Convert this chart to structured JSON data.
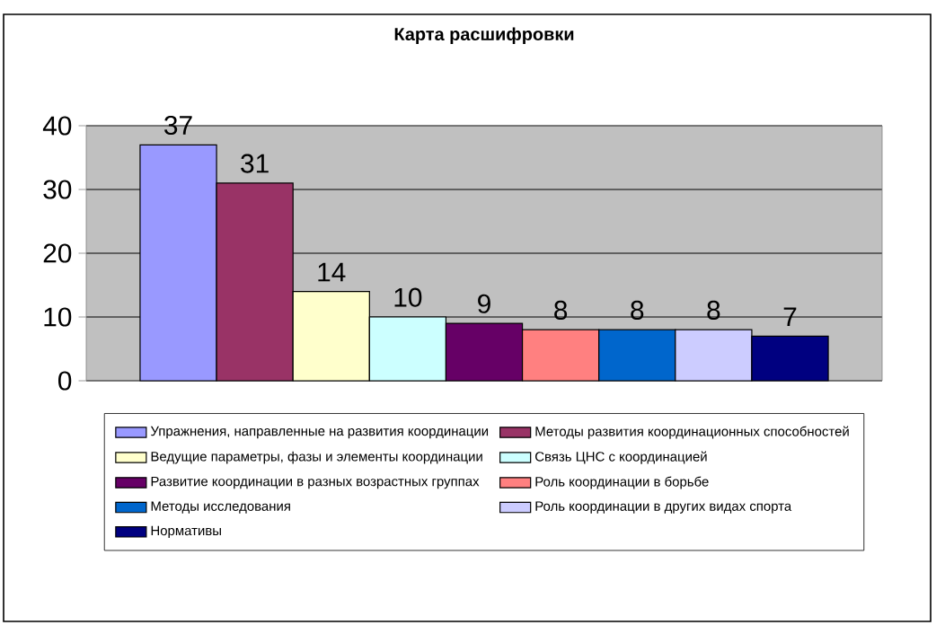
{
  "chart_data": {
    "type": "bar",
    "title": "Карта расшифровки",
    "categories": [
      null
    ],
    "series": [
      {
        "name": "Упражнения, направленные на развития координации",
        "color": "#9999ff",
        "values": [
          37
        ]
      },
      {
        "name": "Методы развития координационных способностей",
        "color": "#993366",
        "values": [
          31
        ]
      },
      {
        "name": "Ведущие параметры, фазы и элементы координации",
        "color": "#ffffcc",
        "values": [
          14
        ]
      },
      {
        "name": "Связь ЦНС с координацией",
        "color": "#ccffff",
        "values": [
          10
        ]
      },
      {
        "name": "Развитие координации в разных возрастных группах",
        "color": "#660066",
        "values": [
          9
        ]
      },
      {
        "name": "Роль координации в борьбе",
        "color": "#ff8080",
        "values": [
          8
        ]
      },
      {
        "name": "Методы исследования",
        "color": "#0066cc",
        "values": [
          8
        ]
      },
      {
        "name": "Роль координации в других видах спорта",
        "color": "#ccccff",
        "values": [
          8
        ]
      },
      {
        "name": "Нормативы",
        "color": "#000080",
        "values": [
          7
        ]
      }
    ],
    "ylim": [
      0,
      40
    ],
    "yticks": [
      0,
      10,
      20,
      30,
      40
    ],
    "grid": "y",
    "legend": "bottom",
    "data_labels": true
  }
}
